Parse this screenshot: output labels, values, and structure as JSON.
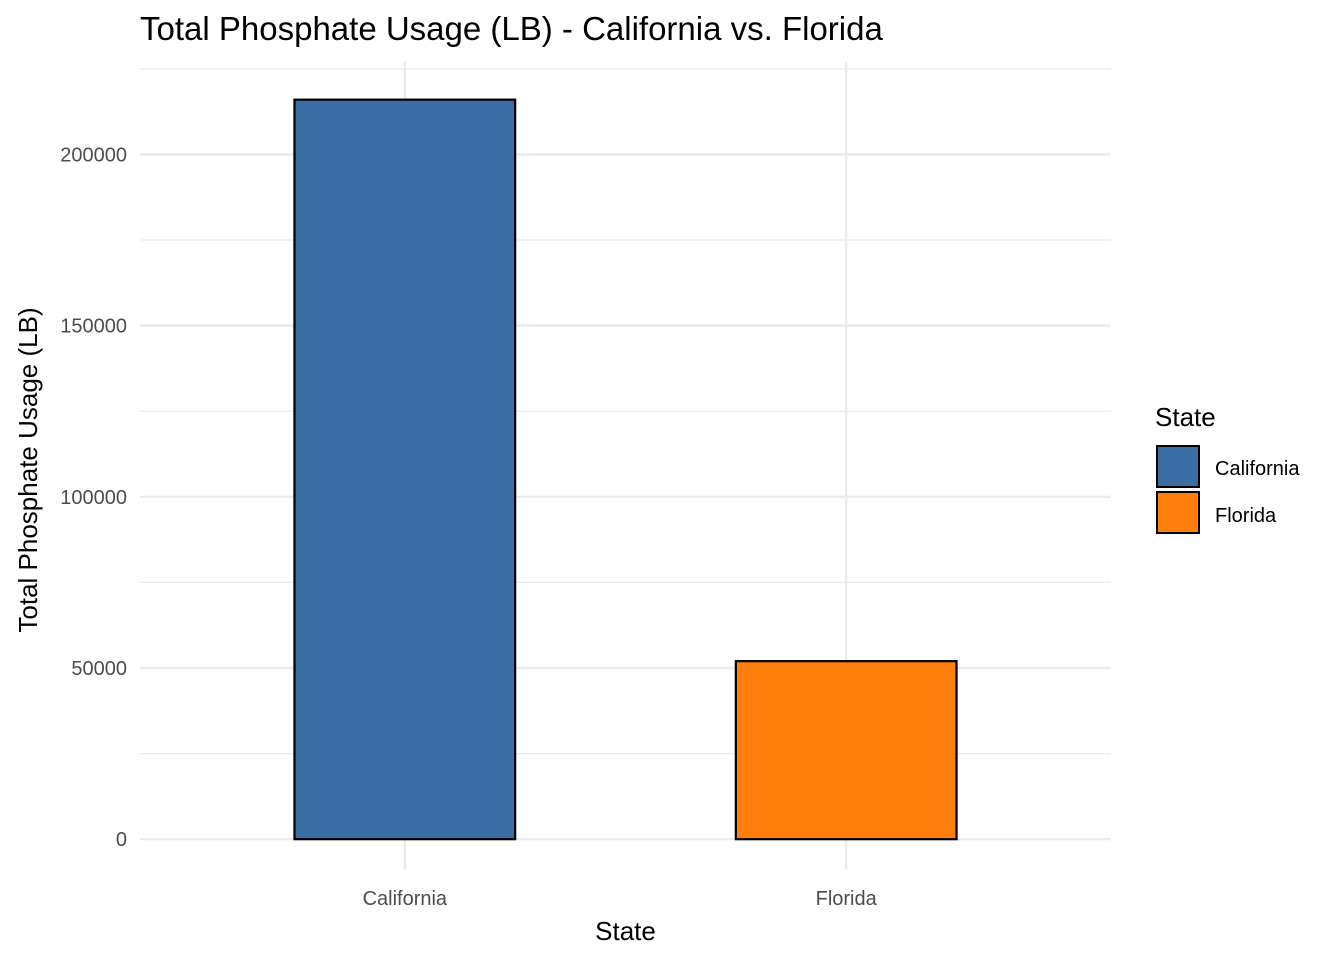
{
  "chart_data": {
    "type": "bar",
    "title": "Total Phosphate Usage (LB) - California vs. Florida",
    "xlabel": "State",
    "ylabel": "Total Phosphate Usage (LB)",
    "categories": [
      "California",
      "Florida"
    ],
    "values": [
      216000,
      52000
    ],
    "colors": [
      "#3A6EA5",
      "#FF7F0E"
    ],
    "ylim": [
      -9000,
      227000
    ],
    "yticks": [
      0,
      50000,
      100000,
      150000,
      200000
    ],
    "ytick_labels": [
      "0",
      "50000",
      "100000",
      "150000",
      "200000"
    ],
    "grid": true,
    "legend": {
      "title": "State",
      "placement": "right",
      "items": [
        "California",
        "Florida"
      ]
    }
  }
}
